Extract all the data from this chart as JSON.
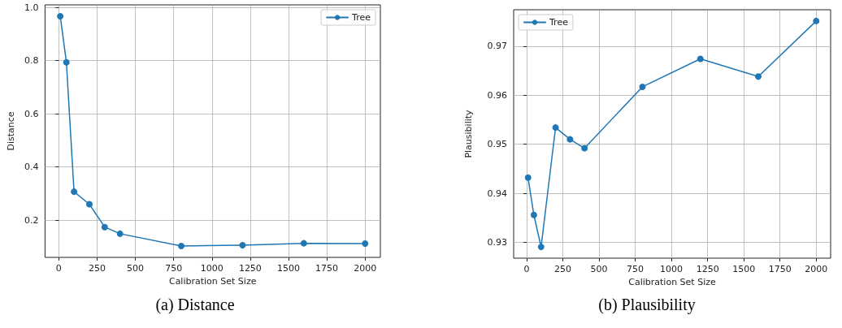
{
  "chart_data": [
    {
      "type": "line",
      "xlabel": "Calibration Set Size",
      "ylabel": "Distance",
      "annotations": [
        "(a) Distance"
      ],
      "x": [
        10,
        50,
        100,
        200,
        300,
        400,
        800,
        1200,
        1600,
        2000
      ],
      "series": [
        {
          "name": "Tree",
          "color": "#1f77b4",
          "values": [
            0.967,
            0.794,
            0.307,
            0.26,
            0.174,
            0.149,
            0.103,
            0.106,
            0.113,
            0.112
          ]
        }
      ],
      "xlim": [
        -89.5,
        2099.5
      ],
      "xticks": [
        0,
        250,
        500,
        750,
        1000,
        1250,
        1500,
        1750,
        2000
      ],
      "ylim": [
        0.06,
        1.01
      ],
      "yticks": [
        0.2,
        0.4,
        0.6,
        0.8,
        {
          "value": 1,
          "label": "1.0"
        }
      ],
      "grid": true,
      "legend": "top right",
      "marker": "circle",
      "line_style": "solid"
    },
    {
      "type": "line",
      "xlabel": "Calibration Set Size",
      "ylabel": "Plausibility",
      "annotations": [
        "(b) Plausibility"
      ],
      "x": [
        10,
        50,
        100,
        200,
        300,
        400,
        800,
        1200,
        1600,
        2000
      ],
      "series": [
        {
          "name": "Tree",
          "color": "#1f77b4",
          "values": [
            0.9432,
            0.9356,
            0.9291,
            0.9534,
            0.951,
            0.9492,
            0.9617,
            0.9674,
            0.9638,
            0.9751
          ]
        }
      ],
      "xlim": [
        -89.5,
        2099.5
      ],
      "xticks": [
        0,
        250,
        500,
        750,
        1000,
        1250,
        1500,
        1750,
        2000
      ],
      "ylim": [
        0.9268,
        0.9774
      ],
      "yticks": [
        0.93,
        0.94,
        0.95,
        0.96,
        0.97
      ],
      "grid": true,
      "legend": "top left",
      "marker": "circle",
      "line_style": "solid"
    }
  ]
}
